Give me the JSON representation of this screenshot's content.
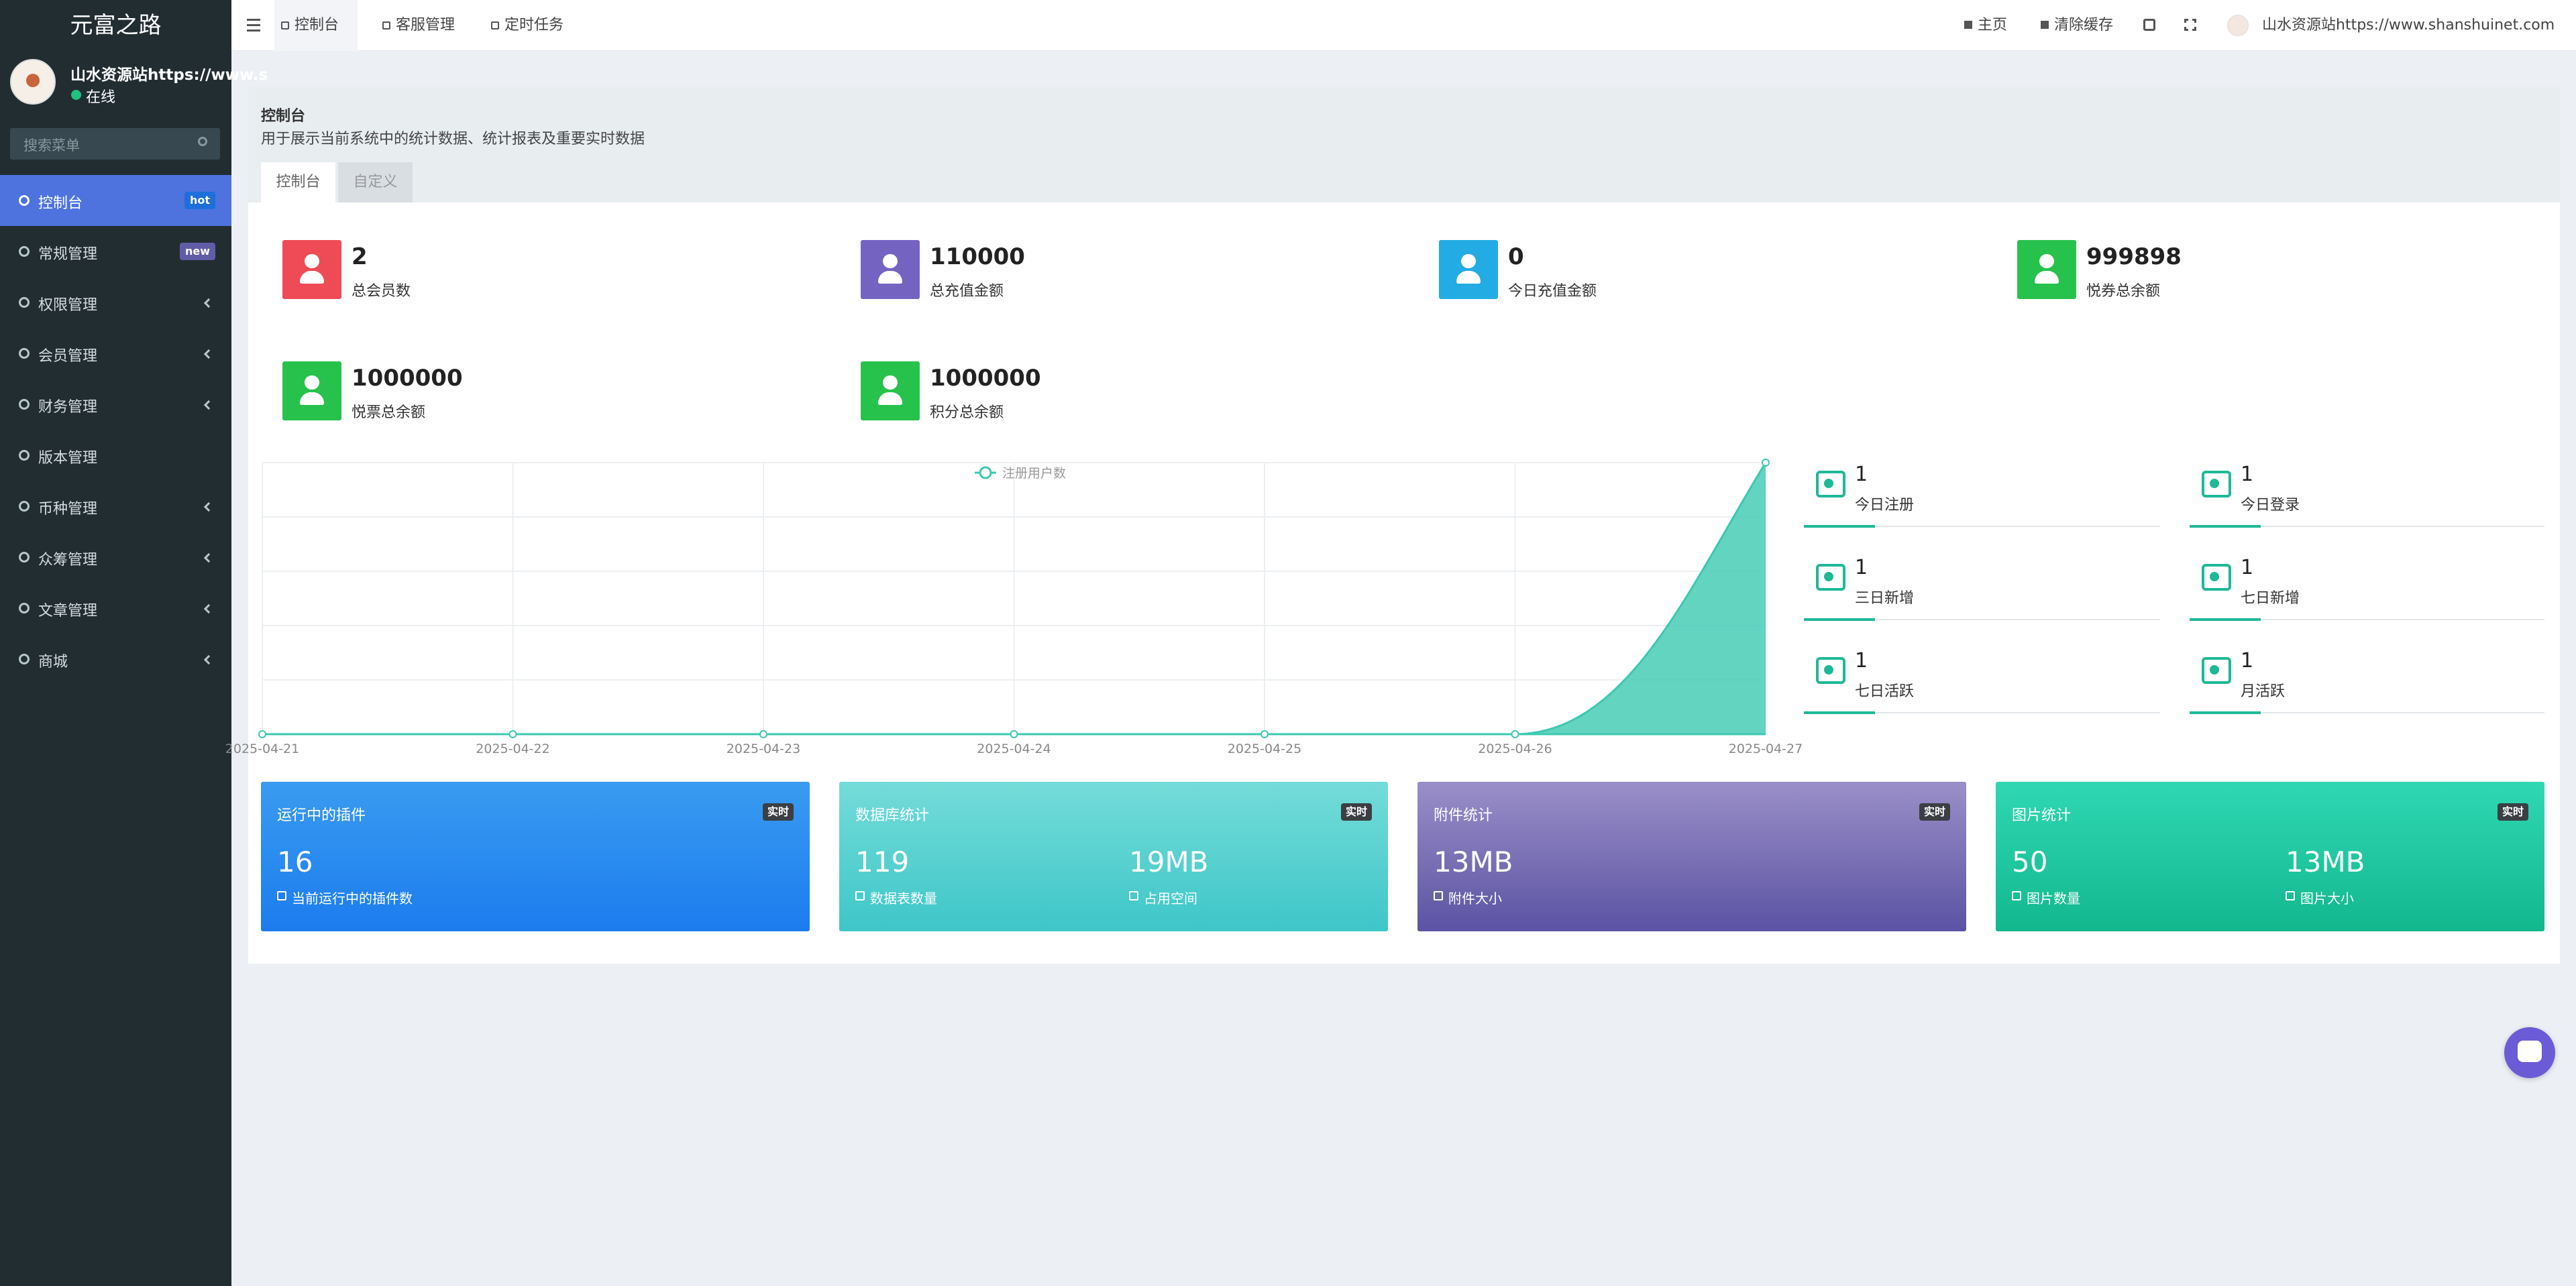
{
  "sidebar": {
    "brand": "元富之路",
    "user": {
      "name": "山水资源站https://www.s",
      "status": "在线"
    },
    "search_placeholder": "搜索菜单",
    "menu": [
      {
        "label": "控制台",
        "badge": "hot"
      },
      {
        "label": "常规管理",
        "badge": "new"
      },
      {
        "label": "权限管理"
      },
      {
        "label": "会员管理"
      },
      {
        "label": "财务管理"
      },
      {
        "label": "版本管理"
      },
      {
        "label": "币种管理"
      },
      {
        "label": "众筹管理"
      },
      {
        "label": "文章管理"
      },
      {
        "label": "商城"
      }
    ]
  },
  "navbar": {
    "tabs": [
      "控制台",
      "客服管理",
      "定时任务"
    ],
    "actions": [
      "主页",
      "清除缓存"
    ],
    "user": "山水资源站https://www.shanshuinet.com"
  },
  "header": {
    "title": "控制台",
    "subtitle": "用于展示当前系统中的统计数据、统计报表及重要实时数据",
    "tabs": [
      "控制台",
      "自定义"
    ]
  },
  "stats": [
    {
      "value": 2,
      "label": "总会员数",
      "color": "#ef4b56"
    },
    {
      "value": 110000,
      "label": "总充值金额",
      "color": "#7563c2"
    },
    {
      "value": 0,
      "label": "今日充值金额",
      "color": "#22ace3"
    },
    {
      "value": 999898,
      "label": "悦券总余额",
      "color": "#27c24c"
    },
    {
      "value": 1000000,
      "label": "悦票总余额",
      "color": "#27c24c"
    },
    {
      "value": 1000000,
      "label": "积分总余额",
      "color": "#27c24c"
    }
  ],
  "chart_data": {
    "type": "line",
    "area": true,
    "x": [
      "2025-04-21",
      "2025-04-22",
      "2025-04-23",
      "2025-04-24",
      "2025-04-25",
      "2025-04-26",
      "2025-04-27"
    ],
    "series": [
      {
        "name": "注册用户数",
        "color": "#3cc9b0",
        "values": [
          0,
          0,
          0,
          0,
          0,
          0,
          1
        ]
      }
    ],
    "ylim": [
      0,
      1
    ],
    "grid": true
  },
  "quick_stats": [
    {
      "value": 1,
      "label": "今日注册"
    },
    {
      "value": 1,
      "label": "今日登录"
    },
    {
      "value": 1,
      "label": "三日新增"
    },
    {
      "value": 1,
      "label": "七日新增"
    },
    {
      "value": 1,
      "label": "七日活跃"
    },
    {
      "value": 1,
      "label": "月活跃"
    }
  ],
  "cards": [
    {
      "title": "运行中的插件",
      "badge": "实时",
      "colors": [
        "#3a9bf1",
        "#1c7cee"
      ],
      "items": [
        {
          "value": "16",
          "label": "当前运行中的插件数"
        }
      ]
    },
    {
      "title": "数据库统计",
      "badge": "实时",
      "colors": [
        "#74dcd9",
        "#3ec6c8"
      ],
      "items": [
        {
          "value": "119",
          "label": "数据表数量"
        },
        {
          "value": "19MB",
          "label": "占用空间"
        }
      ]
    },
    {
      "title": "附件统计",
      "badge": "实时",
      "colors": [
        "#9a8fc8",
        "#5b53a3"
      ],
      "items": [
        {
          "value": "13MB",
          "label": "附件大小"
        }
      ]
    },
    {
      "title": "图片统计",
      "badge": "实时",
      "colors": [
        "#2fd8b3",
        "#12b78e"
      ],
      "items": [
        {
          "value": "50",
          "label": "图片数量"
        },
        {
          "value": "13MB",
          "label": "图片大小"
        }
      ]
    }
  ]
}
